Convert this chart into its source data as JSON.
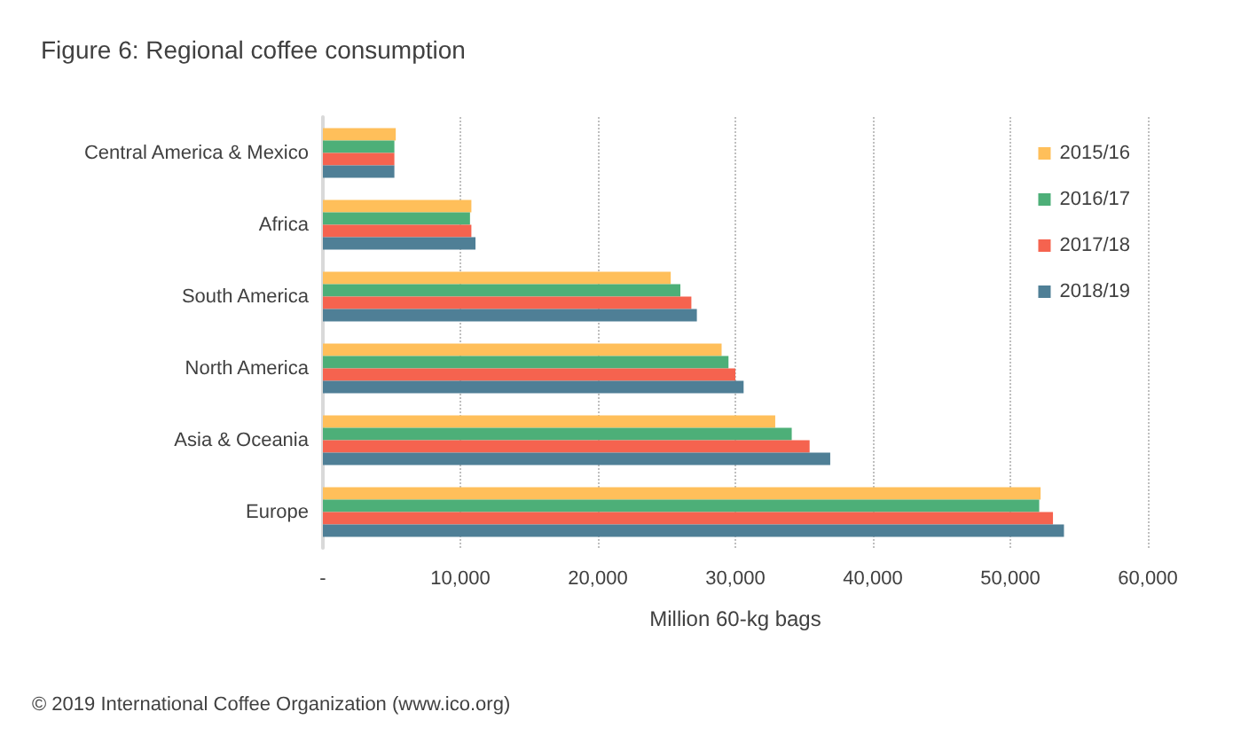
{
  "chart_data": {
    "type": "bar",
    "orientation": "horizontal",
    "title": "Figure 6: Regional coffee consumption",
    "xlabel": "Million 60-kg bags",
    "categories": [
      "Central America & Mexico",
      "Africa",
      "South America",
      "North America",
      "Asia & Oceania",
      "Europe"
    ],
    "series": [
      {
        "name": "2015/16",
        "color": "#ffbf5a",
        "values": [
          5300,
          10800,
          25300,
          29000,
          32900,
          52200
        ]
      },
      {
        "name": "2016/17",
        "color": "#4daf78",
        "values": [
          5200,
          10700,
          26000,
          29500,
          34100,
          52100
        ]
      },
      {
        "name": "2017/18",
        "color": "#f5634f",
        "values": [
          5200,
          10800,
          26800,
          30000,
          35400,
          53100
        ]
      },
      {
        "name": "2018/19",
        "color": "#4f7f96",
        "values": [
          5200,
          11100,
          27200,
          30600,
          36900,
          53900
        ]
      }
    ],
    "xlim": [
      0,
      60000
    ],
    "xticks": [
      {
        "value": 0,
        "label": "-"
      },
      {
        "value": 10000,
        "label": "10,000"
      },
      {
        "value": 20000,
        "label": "20,000"
      },
      {
        "value": 30000,
        "label": "30,000"
      },
      {
        "value": 40000,
        "label": "40,000"
      },
      {
        "value": 50000,
        "label": "50,000"
      },
      {
        "value": 60000,
        "label": "60,000"
      }
    ],
    "grid": "x",
    "legend": "top right",
    "annotations": [
      "© 2019 International Coffee Organization (www.ico.org)"
    ]
  }
}
